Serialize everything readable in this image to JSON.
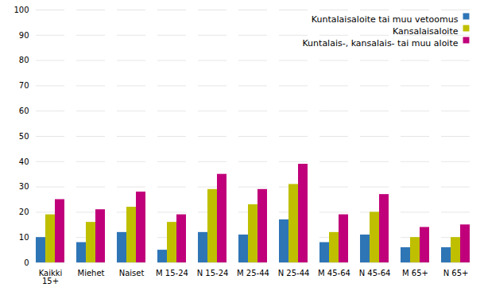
{
  "chart_data": {
    "type": "bar",
    "categories": [
      "Kaikki\n15+",
      "Miehet",
      "Naiset",
      "M 15-24",
      "N 15-24",
      "M 25-44",
      "N 25-44",
      "M 45-64",
      "N 45-64",
      "M 65+",
      "N 65+"
    ],
    "series": [
      {
        "name": "Kuntalaisaloite tai muu vetoomus",
        "color": "#2E75B6",
        "values": [
          10,
          8,
          12,
          5,
          12,
          11,
          17,
          8,
          11,
          6,
          6
        ]
      },
      {
        "name": "Kansalaisaloite",
        "color": "#BFBF00",
        "values": [
          19,
          16,
          22,
          16,
          29,
          23,
          31,
          12,
          20,
          10,
          10
        ]
      },
      {
        "name": "Kuntalais-, kansalais- tai muu aloite",
        "color": "#C0007A",
        "values": [
          25,
          21,
          28,
          19,
          35,
          29,
          39,
          19,
          27,
          14,
          15
        ]
      }
    ],
    "ylim": [
      0,
      100
    ],
    "yticks": [
      0,
      10,
      20,
      30,
      40,
      50,
      60,
      70,
      80,
      90,
      100
    ],
    "grid": true,
    "legend": "upper right"
  }
}
